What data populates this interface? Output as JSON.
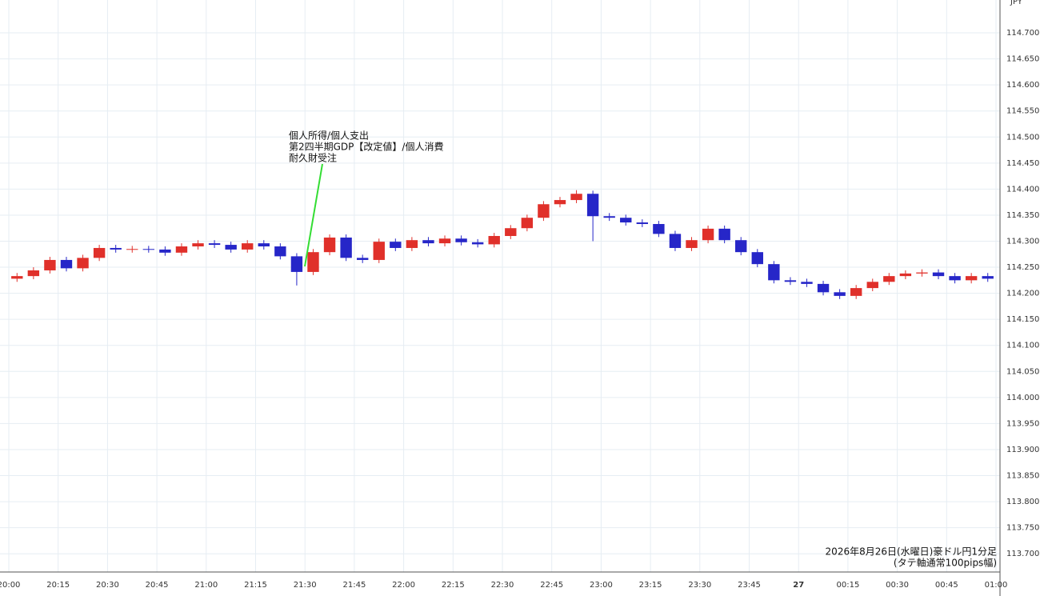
{
  "chart_data": {
    "type": "candlestick",
    "y_axis_label": "JPY",
    "annotation": [
      "個人所得/個人支出",
      "第2四半期GDP【改定値】/個人消費",
      "耐久財受注"
    ],
    "note": [
      "2026年8月26日(水曜日)豪ドル円1分足",
      "(タテ軸通常100pips幅)"
    ],
    "up_color": "#e0302a",
    "down_color": "#2626c8",
    "grid": true,
    "ylim": [
      113.665,
      114.763
    ],
    "yticks": [
      {
        "value": 113.7,
        "label": "113.700"
      },
      {
        "value": 113.75,
        "label": "113.750"
      },
      {
        "value": 113.8,
        "label": "113.800"
      },
      {
        "value": 113.85,
        "label": "113.850"
      },
      {
        "value": 113.9,
        "label": "113.900"
      },
      {
        "value": 113.95,
        "label": "113.950"
      },
      {
        "value": 114.0,
        "label": "114.000"
      },
      {
        "value": 114.05,
        "label": "114.050"
      },
      {
        "value": 114.1,
        "label": "114.100"
      },
      {
        "value": 114.15,
        "label": "114.150"
      },
      {
        "value": 114.2,
        "label": "114.200"
      },
      {
        "value": 114.25,
        "label": "114.250"
      },
      {
        "value": 114.3,
        "label": "114.300"
      },
      {
        "value": 114.35,
        "label": "114.350"
      },
      {
        "value": 114.4,
        "label": "114.400"
      },
      {
        "value": 114.45,
        "label": "114.450"
      },
      {
        "value": 114.5,
        "label": "114.500"
      },
      {
        "value": 114.55,
        "label": "114.550"
      },
      {
        "value": 114.6,
        "label": "114.600"
      },
      {
        "value": 114.65,
        "label": "114.650"
      },
      {
        "value": 114.7,
        "label": "114.700"
      }
    ],
    "xticks": [
      "20:00",
      "20:15",
      "20:30",
      "20:45",
      "21:00",
      "21:15",
      "21:30",
      "21:45",
      "22:00",
      "22:15",
      "22:30",
      "22:45",
      "23:00",
      "23:15",
      "23:30",
      "23:45",
      "27",
      "00:15",
      "00:30",
      "00:45",
      "01:00"
    ],
    "open": [
      114.228,
      114.233,
      114.244,
      114.264,
      114.248,
      114.268,
      114.287,
      114.284,
      114.285,
      114.284,
      114.278,
      114.29,
      114.296,
      114.293,
      114.284,
      114.296,
      114.29,
      114.271,
      114.241,
      114.279,
      114.307,
      114.268,
      114.264,
      114.299,
      114.287,
      114.302,
      114.296,
      114.305,
      114.298,
      114.294,
      114.31,
      114.325,
      114.345,
      114.371,
      114.379,
      114.391,
      114.348,
      114.345,
      114.336,
      114.333,
      114.314,
      114.287,
      114.302,
      114.324,
      114.302,
      114.279,
      114.256,
      114.225,
      114.222,
      114.218,
      114.202,
      114.195,
      114.21,
      114.222,
      114.233,
      114.238,
      114.24,
      114.233,
      114.225,
      114.233
    ],
    "high": [
      114.239,
      114.25,
      114.27,
      114.27,
      114.274,
      114.293,
      114.293,
      114.291,
      114.291,
      114.29,
      114.296,
      114.302,
      114.302,
      114.299,
      114.302,
      114.302,
      114.296,
      114.277,
      114.285,
      114.313,
      114.313,
      114.274,
      114.305,
      114.305,
      114.308,
      114.308,
      114.311,
      114.311,
      114.304,
      114.316,
      114.331,
      114.351,
      114.377,
      114.385,
      114.398,
      114.397,
      114.354,
      114.351,
      114.342,
      114.339,
      114.32,
      114.308,
      114.33,
      114.33,
      114.308,
      114.285,
      114.262,
      114.231,
      114.228,
      114.224,
      114.208,
      114.216,
      114.228,
      114.239,
      114.244,
      114.246,
      114.246,
      114.239,
      114.239,
      114.239
    ],
    "low": [
      114.222,
      114.227,
      114.238,
      114.242,
      114.242,
      114.262,
      114.278,
      114.278,
      114.278,
      114.272,
      114.272,
      114.284,
      114.287,
      114.278,
      114.278,
      114.284,
      114.265,
      114.215,
      114.235,
      114.273,
      114.262,
      114.258,
      114.258,
      114.281,
      114.281,
      114.29,
      114.29,
      114.292,
      114.288,
      114.288,
      114.304,
      114.319,
      114.339,
      114.365,
      114.373,
      114.3,
      114.339,
      114.33,
      114.327,
      114.308,
      114.281,
      114.281,
      114.296,
      114.296,
      114.273,
      114.25,
      114.219,
      114.216,
      114.212,
      114.196,
      114.189,
      114.189,
      114.204,
      114.216,
      114.227,
      114.232,
      114.227,
      114.219,
      114.219,
      114.222
    ],
    "close": [
      114.233,
      114.244,
      114.264,
      114.248,
      114.268,
      114.287,
      114.284,
      114.285,
      114.284,
      114.278,
      114.29,
      114.296,
      114.293,
      114.284,
      114.296,
      114.29,
      114.271,
      114.241,
      114.279,
      114.307,
      114.268,
      114.264,
      114.299,
      114.287,
      114.302,
      114.296,
      114.305,
      114.298,
      114.294,
      114.31,
      114.325,
      114.345,
      114.371,
      114.379,
      114.391,
      114.348,
      114.345,
      114.336,
      114.333,
      114.314,
      114.287,
      114.302,
      114.324,
      114.302,
      114.279,
      114.256,
      114.225,
      114.222,
      114.218,
      114.202,
      114.195,
      114.21,
      114.222,
      114.233,
      114.238,
      114.24,
      114.233,
      114.225,
      114.233,
      114.228
    ]
  }
}
